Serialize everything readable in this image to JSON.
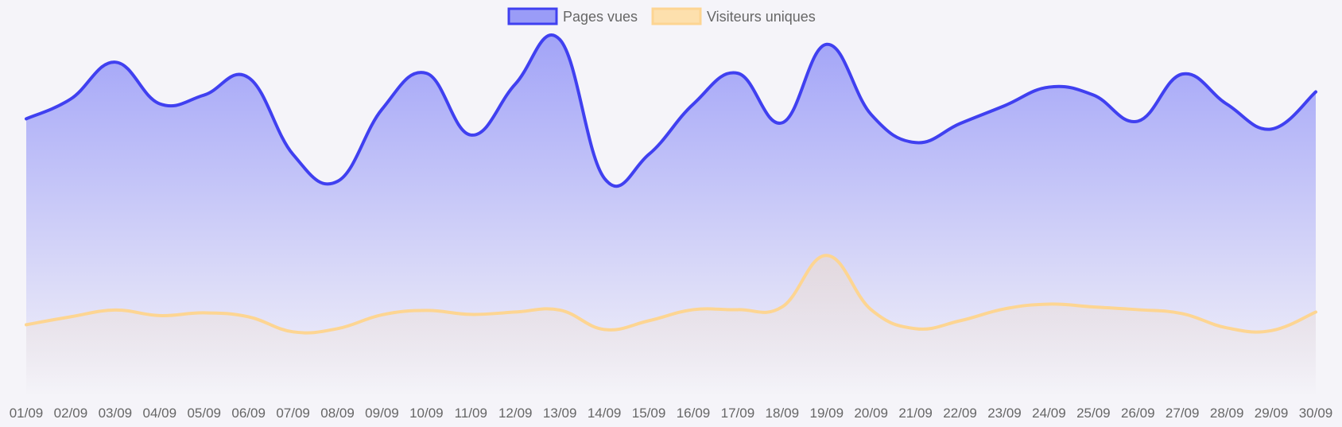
{
  "chart_data": {
    "type": "area",
    "legend_position": "top",
    "grid": false,
    "x": [
      "01/09",
      "02/09",
      "03/09",
      "04/09",
      "05/09",
      "06/09",
      "07/09",
      "08/09",
      "09/09",
      "10/09",
      "11/09",
      "12/09",
      "13/09",
      "14/09",
      "15/09",
      "16/09",
      "17/09",
      "18/09",
      "19/09",
      "20/09",
      "21/09",
      "22/09",
      "23/09",
      "24/09",
      "25/09",
      "26/09",
      "27/09",
      "28/09",
      "29/09",
      "30/09"
    ],
    "ylim": [
      0,
      1000
    ],
    "series": [
      {
        "name": "Pages vues",
        "color": "#4040f0",
        "fill_color": "#9a9cf7",
        "values": [
          700,
          750,
          843,
          738,
          760,
          804,
          610,
          542,
          724,
          815,
          659,
          788,
          900,
          550,
          610,
          737,
          815,
          690,
          888,
          711,
          640,
          688,
          733,
          780,
          760,
          694,
          813,
          737,
          674,
          768
        ]
      },
      {
        "name": "Visiteurs uniques",
        "color": "#fdd592",
        "fill_color": "#fde0ad",
        "values": [
          180,
          200,
          217,
          203,
          210,
          200,
          162,
          170,
          205,
          216,
          206,
          212,
          217,
          168,
          190,
          218,
          218,
          225,
          355,
          218,
          170,
          190,
          220,
          232,
          225,
          218,
          208,
          172,
          165,
          212
        ]
      }
    ]
  }
}
